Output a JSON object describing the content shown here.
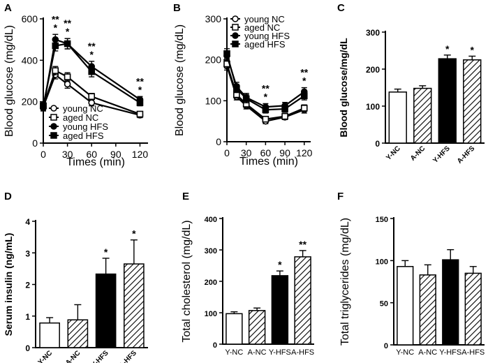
{
  "chart_data": [
    {
      "panel": "A",
      "type": "line",
      "xlabel": "Times (min)",
      "ylabel": "Blood glucose (mg/dL)",
      "x": [
        0,
        15,
        30,
        60,
        120
      ],
      "xticks": [
        0,
        30,
        60,
        90,
        120
      ],
      "yticks": [
        0,
        200,
        400,
        600
      ],
      "xlim": [
        0,
        130
      ],
      "ylim": [
        0,
        600
      ],
      "legend_position": "bottom-left",
      "series": [
        {
          "name": "young NC",
          "values": [
            175,
            330,
            285,
            195,
            135
          ],
          "errors": [
            15,
            20,
            20,
            15,
            12
          ]
        },
        {
          "name": "aged NC",
          "values": [
            180,
            350,
            320,
            225,
            140
          ],
          "errors": [
            15,
            20,
            20,
            15,
            12
          ]
        },
        {
          "name": "young HFS",
          "values": [
            170,
            500,
            480,
            370,
            210
          ],
          "errors": [
            15,
            25,
            25,
            25,
            15
          ]
        },
        {
          "name": "aged HFS",
          "values": [
            180,
            470,
            480,
            345,
            195
          ],
          "errors": [
            15,
            25,
            25,
            25,
            15
          ]
        }
      ],
      "annotations": [
        {
          "x": 15,
          "text": "**",
          "row": 0
        },
        {
          "x": 15,
          "text": "*",
          "row": 1
        },
        {
          "x": 30,
          "text": "**",
          "row": 0
        },
        {
          "x": 30,
          "text": "*",
          "row": 1
        },
        {
          "x": 60,
          "text": "**",
          "row": 0
        },
        {
          "x": 60,
          "text": "*",
          "row": 1
        },
        {
          "x": 120,
          "text": "**",
          "row": 0
        },
        {
          "x": 120,
          "text": "*",
          "row": 1
        }
      ]
    },
    {
      "panel": "B",
      "type": "line",
      "xlabel": "Times (min)",
      "ylabel": "Blood glucose (mg/dL)",
      "x": [
        0,
        15,
        30,
        60,
        90,
        120
      ],
      "xticks": [
        0,
        30,
        60,
        90,
        120
      ],
      "yticks": [
        0,
        100,
        200,
        300
      ],
      "xlim": [
        0,
        130
      ],
      "ylim": [
        0,
        300
      ],
      "legend_position": "top-right",
      "series": [
        {
          "name": "young NC",
          "values": [
            185,
            110,
            88,
            50,
            60,
            78
          ],
          "errors": [
            10,
            8,
            8,
            6,
            6,
            8
          ]
        },
        {
          "name": "aged NC",
          "values": [
            190,
            115,
            92,
            55,
            62,
            82
          ],
          "errors": [
            10,
            8,
            8,
            6,
            6,
            8
          ]
        },
        {
          "name": "young HFS",
          "values": [
            210,
            135,
            108,
            85,
            88,
            122
          ],
          "errors": [
            12,
            10,
            10,
            8,
            8,
            10
          ]
        },
        {
          "name": "aged HFS",
          "values": [
            215,
            130,
            105,
            78,
            80,
            112
          ],
          "errors": [
            12,
            10,
            10,
            8,
            8,
            10
          ]
        }
      ],
      "annotations": [
        {
          "x": 60,
          "text": "**",
          "row": 0
        },
        {
          "x": 60,
          "text": "*",
          "row": 1
        },
        {
          "x": 120,
          "text": "**",
          "row": 0
        },
        {
          "x": 120,
          "text": "*",
          "row": 1
        }
      ]
    },
    {
      "panel": "C",
      "type": "bar",
      "ylabel": "Blood glucose/mg/dL",
      "categories": [
        "Y-NC",
        "A-NC",
        "Y-HFS",
        "A-HFS"
      ],
      "values": [
        138,
        148,
        228,
        225
      ],
      "errors": [
        8,
        7,
        10,
        10
      ],
      "fills": [
        "white",
        "hatch",
        "black",
        "hatch"
      ],
      "significance": [
        "",
        "",
        "*",
        "*"
      ],
      "yticks": [
        0,
        100,
        200,
        300
      ],
      "ylim": [
        0,
        300
      ]
    },
    {
      "panel": "D",
      "type": "bar",
      "ylabel": "Serum insulin (ng/mL)",
      "categories": [
        "Y-NC",
        "A-NC",
        "Y-HFS",
        "A-HFS"
      ],
      "values": [
        0.78,
        0.88,
        2.33,
        2.65
      ],
      "errors": [
        0.17,
        0.48,
        0.5,
        0.76
      ],
      "fills": [
        "white",
        "hatch",
        "black",
        "hatch"
      ],
      "significance": [
        "",
        "",
        "*",
        "*"
      ],
      "yticks": [
        0,
        1,
        2,
        3,
        4
      ],
      "ylim": [
        0,
        4
      ]
    },
    {
      "panel": "E",
      "type": "bar",
      "ylabel": "Total cholesterol (mg/dL)",
      "categories": [
        "Y-NC",
        "A-NC",
        "Y-HFS",
        "A-HFS"
      ],
      "values": [
        97,
        107,
        218,
        278
      ],
      "errors": [
        6,
        8,
        15,
        20
      ],
      "fills": [
        "white",
        "hatch",
        "black",
        "hatch"
      ],
      "significance": [
        "",
        "",
        "*",
        "**"
      ],
      "yticks": [
        0,
        100,
        200,
        300,
        400
      ],
      "ylim": [
        0,
        400
      ]
    },
    {
      "panel": "F",
      "type": "bar",
      "ylabel": "Total triglycerides (mg/dL)",
      "categories": [
        "Y-NC",
        "A-NC",
        "Y-HFS",
        "A-HFS"
      ],
      "values": [
        93,
        83,
        101,
        85
      ],
      "errors": [
        7,
        12,
        12,
        8
      ],
      "fills": [
        "white",
        "hatch",
        "black",
        "hatch"
      ],
      "significance": [
        "",
        "",
        "",
        ""
      ],
      "yticks": [
        0,
        50,
        100,
        150
      ],
      "ylim": [
        0,
        150
      ]
    }
  ]
}
